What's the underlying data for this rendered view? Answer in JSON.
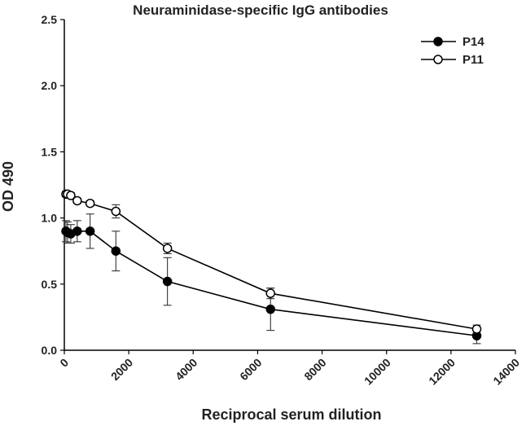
{
  "chart_data": {
    "type": "line",
    "title": "Neuraminidase-specific IgG antibodies",
    "xlabel": "Reciprocal serum dilution",
    "ylabel": "OD 490",
    "xlim": [
      0,
      14000
    ],
    "ylim": [
      0.0,
      2.5
    ],
    "xticks": [
      "0",
      "2000",
      "4000",
      "6000",
      "8000",
      "10000",
      "12000",
      "14000"
    ],
    "yticks": [
      "0.0",
      "0.5",
      "1.0",
      "1.5",
      "2.0",
      "2.5"
    ],
    "grid": false,
    "legend_position": "top-right",
    "x": [
      50,
      100,
      200,
      400,
      800,
      1600,
      3200,
      6400,
      12800
    ],
    "series": [
      {
        "name": "P14",
        "marker": "filled-circle",
        "color": "#000000",
        "values": [
          0.9,
          0.89,
          0.88,
          0.9,
          0.9,
          0.75,
          0.52,
          0.31,
          0.11
        ],
        "errors": [
          0.08,
          0.08,
          0.07,
          0.08,
          0.13,
          0.15,
          0.18,
          0.16,
          0.06
        ]
      },
      {
        "name": "P11",
        "marker": "open-circle",
        "color": "#000000",
        "values": [
          1.18,
          1.18,
          1.17,
          1.13,
          1.11,
          1.05,
          0.77,
          0.43,
          0.16
        ],
        "errors": [
          0.02,
          0.02,
          0.02,
          0.02,
          0.02,
          0.05,
          0.04,
          0.04,
          0.03
        ]
      }
    ]
  }
}
